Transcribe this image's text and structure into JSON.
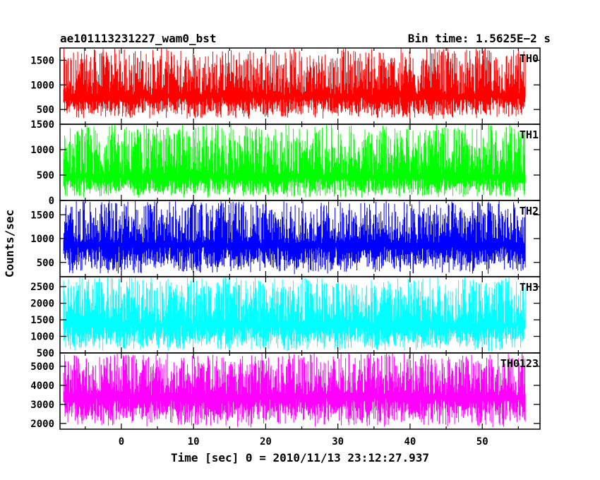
{
  "header": {
    "left_title": "ae101113231227_wam0_bst",
    "right_title": "Bin time: 1.5625E−2 s"
  },
  "chart_data": {
    "type": "line",
    "title": "ae101113231227_wam0_bst",
    "subtitle": "Bin time: 1.5625E−2 s",
    "xlabel": "Time [sec] 0 = 2010/11/13 23:12:27.937",
    "ylabel": "Counts/sec",
    "xlim": [
      -8.5,
      58
    ],
    "x_range": [
      -8,
      56
    ],
    "x_ticks": [
      0,
      10,
      20,
      30,
      40,
      50
    ],
    "grid": false,
    "panels": [
      {
        "name": "TH0",
        "color": "#ff0000",
        "ylim": [
          200,
          1750
        ],
        "y_ticks": [
          500,
          1000,
          1500
        ],
        "baseline": 800,
        "low": 300,
        "high": 1750
      },
      {
        "name": "TH1",
        "color": "#00ff00",
        "ylim": [
          0,
          1500
        ],
        "y_ticks": [
          0,
          500,
          1000,
          1500
        ],
        "baseline": 500,
        "low": 50,
        "high": 1500
      },
      {
        "name": "TH2",
        "color": "#0000ff",
        "ylim": [
          200,
          1800
        ],
        "y_ticks": [
          500,
          1000,
          1500
        ],
        "baseline": 900,
        "low": 250,
        "high": 1800
      },
      {
        "name": "TH3",
        "color": "#00ffff",
        "ylim": [
          500,
          2800
        ],
        "y_ticks": [
          500,
          1000,
          1500,
          2000,
          2500
        ],
        "baseline": 1400,
        "low": 550,
        "high": 2800
      },
      {
        "name": "TH0123",
        "color": "#ff00ff",
        "ylim": [
          1700,
          5700
        ],
        "y_ticks": [
          2000,
          3000,
          4000,
          5000
        ],
        "baseline": 3500,
        "low": 1800,
        "high": 5700
      }
    ]
  }
}
